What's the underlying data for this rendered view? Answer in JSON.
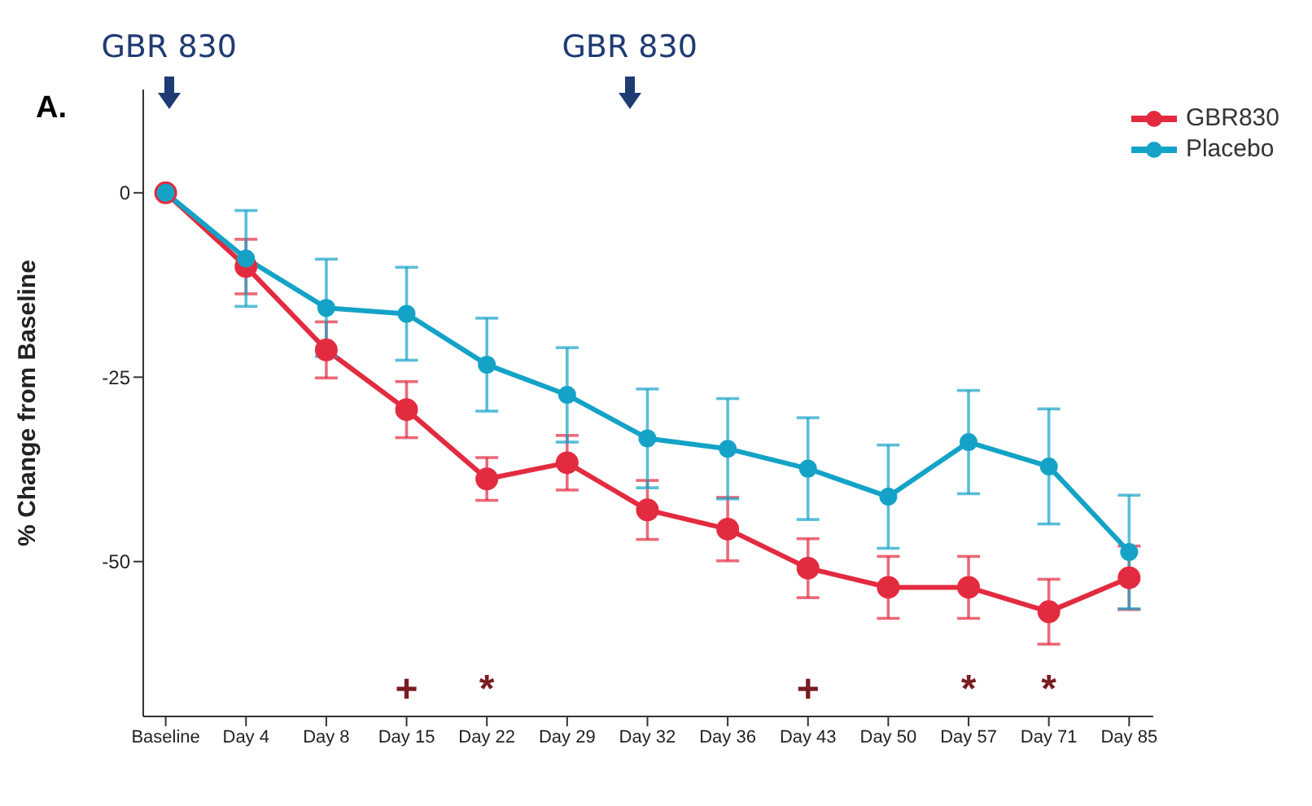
{
  "chart_data": {
    "type": "line",
    "title": "A.",
    "ylabel": "% Change from Baseline",
    "categories": [
      "Baseline",
      "Day 4",
      "Day 8",
      "Day 15",
      "Day 22",
      "Day 29",
      "Day 32",
      "Day 36",
      "Day 43",
      "Day 50",
      "Day 57",
      "Day 71",
      "Day 85"
    ],
    "series": [
      {
        "name": "GBR830",
        "color": "#e32b40",
        "values": [
          0,
          -10,
          -21.3,
          -29.4,
          -38.8,
          -36.6,
          -43,
          -45.6,
          -50.9,
          -53.5,
          -53.5,
          -56.8,
          -52.2
        ],
        "errors": [
          null,
          3.7,
          3.8,
          3.8,
          2.9,
          3.7,
          4,
          4.3,
          4,
          4.2,
          4.2,
          4.4,
          4.3
        ]
      },
      {
        "name": "Placebo",
        "color": "#14a3c7",
        "values": [
          0,
          -8.9,
          -15.6,
          -16.4,
          -23.3,
          -27.4,
          -33.3,
          -34.7,
          -37.4,
          -41.2,
          -33.8,
          -37.1,
          -48.7
        ],
        "errors": [
          null,
          6.5,
          6.6,
          6.3,
          6.3,
          6.4,
          6.7,
          6.8,
          6.9,
          7,
          7,
          7.8,
          7.7
        ]
      }
    ],
    "ylim": [
      -71,
      14
    ],
    "yticks": [
      0,
      -25,
      -50
    ],
    "grid": false,
    "legend": "top right",
    "marker": "circle",
    "line_style": "solid",
    "annotations": [
      "GBR 830",
      "GBR 830",
      "+",
      "*",
      "+",
      "*",
      "*"
    ]
  }
}
